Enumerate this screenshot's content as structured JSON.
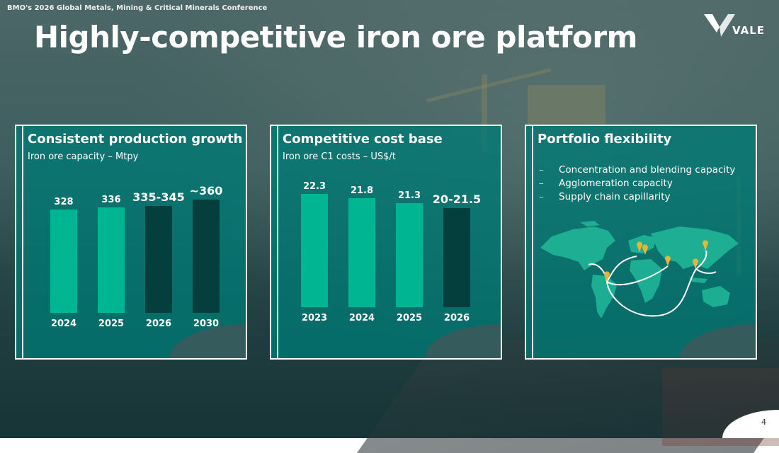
{
  "header": {
    "conference": "BMO's 2026 Global Metals, Mining & Critical Minerals Conference",
    "title": "Highly-competitive iron ore platform",
    "logo_text": "VALE"
  },
  "footer": {
    "page_number": "4"
  },
  "colors": {
    "accent": "#00b591",
    "dark_bar": "#053f3d",
    "panel": "#007a74",
    "pin": "#e7b43a"
  },
  "panels": [
    {
      "title": "Consistent production growth",
      "subtitle": "Iron ore capacity – Mtpy",
      "chart_data": {
        "type": "bar",
        "categories": [
          "2024",
          "2025",
          "2026",
          "2030"
        ],
        "values": [
          328,
          336,
          340,
          360
        ],
        "value_labels": [
          "328",
          "336",
          "335-345",
          "~360"
        ],
        "highlight": [
          false,
          false,
          true,
          true
        ]
      }
    },
    {
      "title": "Competitive cost base",
      "subtitle": "Iron ore C1 costs – US$/t",
      "chart_data": {
        "type": "bar",
        "categories": [
          "2023",
          "2024",
          "2025",
          "2026"
        ],
        "values": [
          22.3,
          21.8,
          21.3,
          20.75
        ],
        "value_labels": [
          "22.3",
          "21.8",
          "21.3",
          "20-21.5"
        ],
        "highlight": [
          false,
          false,
          false,
          true
        ]
      }
    },
    {
      "title": "Portfolio flexibility",
      "bullets": [
        "Concentration and blending capacity",
        "Agglomeration capacity",
        "Supply chain capillarity"
      ],
      "map_icon": "world-map-icon"
    }
  ]
}
